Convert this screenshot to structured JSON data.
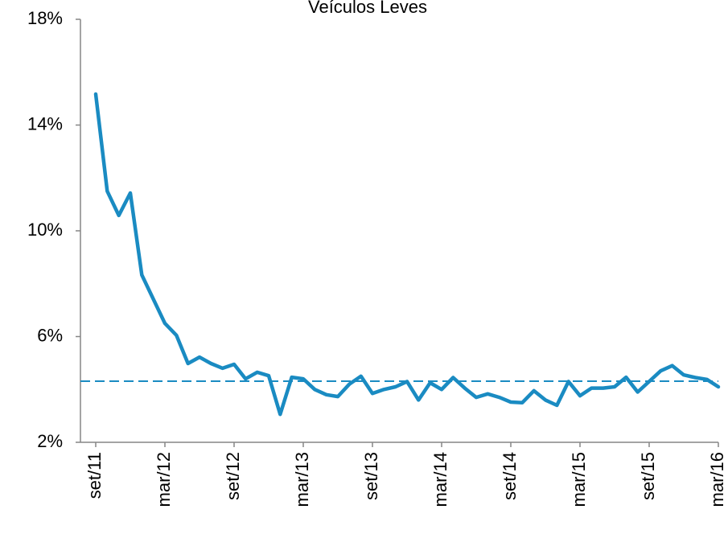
{
  "chart_data": {
    "type": "line",
    "title": "Veículos Leves",
    "color": "#1a8bc2",
    "categories": [
      "set/11",
      null,
      null,
      null,
      null,
      null,
      "mar/12",
      null,
      null,
      null,
      null,
      null,
      "set/12",
      null,
      null,
      null,
      null,
      null,
      "mar/13",
      null,
      null,
      null,
      null,
      null,
      "set/13",
      null,
      null,
      null,
      null,
      null,
      "mar/14",
      null,
      null,
      null,
      null,
      null,
      "set/14",
      null,
      null,
      null,
      null,
      null,
      "mar/15",
      null,
      null,
      null,
      null,
      null,
      "set/15",
      null,
      null,
      null,
      null,
      null,
      "mar/16"
    ],
    "values": [
      15.17,
      11.5,
      10.58,
      11.43,
      8.33,
      7.41,
      6.5,
      6.05,
      4.98,
      5.22,
      4.98,
      4.8,
      4.95,
      4.4,
      4.65,
      4.52,
      3.06,
      4.46,
      4.4,
      4.0,
      3.8,
      3.73,
      4.2,
      4.5,
      3.85,
      4.0,
      4.1,
      4.3,
      3.6,
      4.25,
      4.0,
      4.45,
      4.05,
      3.7,
      3.83,
      3.7,
      3.52,
      3.5,
      3.95,
      3.6,
      3.4,
      4.3,
      3.76,
      4.05,
      4.05,
      4.1,
      4.46,
      3.9,
      4.3,
      4.7,
      4.9,
      4.55,
      4.45,
      4.38,
      4.1
    ],
    "reference_line": {
      "value": 4.31,
      "color": "#1a8bc2",
      "style": "dashed"
    },
    "ylim": [
      2,
      18
    ],
    "yticks": [
      {
        "value": 2,
        "label": "2%"
      },
      {
        "value": 6,
        "label": "6%"
      },
      {
        "value": 10,
        "label": "10%"
      },
      {
        "value": 14,
        "label": "14%"
      },
      {
        "value": 18,
        "label": "18%"
      }
    ],
    "grid": false
  }
}
